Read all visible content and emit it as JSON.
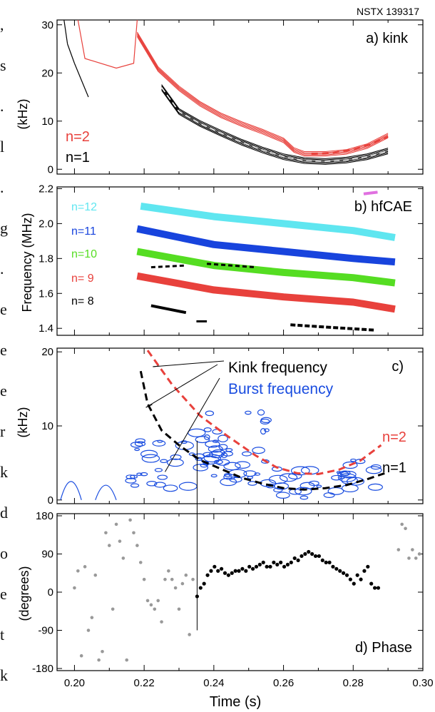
{
  "header": {
    "shot": "NSTX 139317"
  },
  "x_axis": {
    "label": "Time (s)",
    "ticks": [
      "0.20",
      "0.22",
      "0.24",
      "0.26",
      "0.28",
      "0.30"
    ],
    "range": [
      0.195,
      0.3
    ]
  },
  "margin_letters": [
    ",",
    "s",
    ".",
    "l",
    ".",
    "g",
    ".",
    "e",
    "e",
    "e",
    "r",
    "k",
    "d",
    "o",
    "e",
    "t",
    "k"
  ],
  "chart_data": [
    {
      "panel": "a",
      "type": "line",
      "title": "a) kink",
      "ylabel": "(kHz)",
      "ylim": [
        -1,
        31
      ],
      "yticks": [
        "0",
        "10",
        "20",
        "30"
      ],
      "legend": [
        {
          "label": "n=2",
          "color": "#e8413c"
        },
        {
          "label": "n=1",
          "color": "#000000"
        }
      ],
      "series": [
        {
          "name": "n=2",
          "color": "#e8413c",
          "x": [
            0.218,
            0.224,
            0.23,
            0.236,
            0.242,
            0.248,
            0.254,
            0.26,
            0.263,
            0.266,
            0.272,
            0.278,
            0.284,
            0.29
          ],
          "y": [
            28.0,
            20.8,
            16.8,
            13.6,
            11.2,
            9.4,
            7.8,
            6.0,
            4.0,
            3.2,
            3.2,
            3.6,
            4.8,
            7.0
          ]
        },
        {
          "name": "n=1",
          "color": "#000000",
          "x": [
            0.225,
            0.23,
            0.236,
            0.242,
            0.248,
            0.254,
            0.26,
            0.266,
            0.272,
            0.278,
            0.284,
            0.29
          ],
          "y": [
            17.0,
            12.0,
            9.5,
            7.5,
            5.6,
            4.0,
            2.6,
            1.8,
            1.6,
            1.9,
            2.6,
            3.8
          ]
        }
      ]
    },
    {
      "panel": "b",
      "type": "line",
      "title": "b) hfCAE",
      "ylabel": "Frequency (MHz)",
      "ylim": [
        1.36,
        2.21
      ],
      "yticks": [
        "1.4",
        "1.6",
        "1.8",
        "2.0",
        "2.2"
      ],
      "series": [
        {
          "name": "n=12",
          "color": "#5fe6f0",
          "x": [
            0.219,
            0.24,
            0.26,
            0.28,
            0.292
          ],
          "y": [
            2.1,
            2.04,
            2.0,
            1.96,
            1.92
          ]
        },
        {
          "name": "n=11",
          "color": "#1844dd",
          "x": [
            0.218,
            0.24,
            0.26,
            0.28,
            0.292
          ],
          "y": [
            1.97,
            1.88,
            1.84,
            1.8,
            1.78
          ]
        },
        {
          "name": "n=10",
          "color": "#55dd22",
          "x": [
            0.218,
            0.24,
            0.26,
            0.28,
            0.292
          ],
          "y": [
            1.84,
            1.76,
            1.72,
            1.69,
            1.66
          ]
        },
        {
          "name": "n= 9",
          "color": "#e8413c",
          "x": [
            0.218,
            0.24,
            0.26,
            0.28,
            0.292
          ],
          "y": [
            1.7,
            1.62,
            1.58,
            1.55,
            1.51
          ]
        },
        {
          "name": "n= 8",
          "color": "#000000",
          "x": [
            0.222,
            0.227,
            0.232
          ],
          "y": [
            1.53,
            1.51,
            1.49
          ]
        }
      ]
    },
    {
      "panel": "c",
      "type": "line",
      "title": "c)",
      "ylabel": "(kHz)",
      "ylim": [
        -0.5,
        20.5
      ],
      "yticks": [
        "0",
        "10",
        "20"
      ],
      "annotations": [
        "Kink frequency",
        "Burst frequency"
      ],
      "series_labels": [
        {
          "label": "n=2",
          "color": "#e8413c"
        },
        {
          "label": "n=1",
          "color": "#000000"
        }
      ],
      "series": [
        {
          "name": "n=2",
          "color": "#e8413c",
          "x": [
            0.221,
            0.228,
            0.236,
            0.244,
            0.252,
            0.258,
            0.264,
            0.27,
            0.276,
            0.282,
            0.288
          ],
          "y": [
            20.2,
            15.6,
            11.4,
            8.6,
            6.0,
            4.4,
            3.6,
            3.5,
            4.1,
            5.3,
            7.4
          ]
        },
        {
          "name": "n=1",
          "color": "#000000",
          "x": [
            0.219,
            0.221,
            0.225,
            0.23,
            0.236,
            0.242,
            0.248,
            0.254,
            0.26,
            0.266,
            0.272,
            0.278,
            0.284,
            0.289
          ],
          "y": [
            17.4,
            13.0,
            9.4,
            7.4,
            5.4,
            4.2,
            3.0,
            2.2,
            1.6,
            1.4,
            1.6,
            2.0,
            2.8,
            3.6
          ]
        }
      ]
    },
    {
      "panel": "d",
      "type": "scatter",
      "title": "d) Phase",
      "ylabel": "(degrees)",
      "ylim": [
        -185,
        185
      ],
      "yticks": [
        "180",
        "90",
        "0",
        "-90",
        "-180"
      ],
      "series": [
        {
          "name": "gray",
          "color": "#999999",
          "x": [
            0.2,
            0.201,
            0.202,
            0.203,
            0.204,
            0.205,
            0.206,
            0.207,
            0.208,
            0.209,
            0.21,
            0.211,
            0.212,
            0.213,
            0.214,
            0.215,
            0.216,
            0.217,
            0.218,
            0.219,
            0.22,
            0.221,
            0.222,
            0.223,
            0.224,
            0.225,
            0.226,
            0.227,
            0.228,
            0.229,
            0.23,
            0.231,
            0.232,
            0.233,
            0.234,
            0.293,
            0.294,
            0.295,
            0.296,
            0.297,
            0.298,
            0.299
          ],
          "y": [
            10,
            50,
            -150,
            60,
            -90,
            -60,
            40,
            -160,
            -140,
            140,
            110,
            -40,
            160,
            120,
            80,
            -160,
            170,
            140,
            110,
            70,
            30,
            -20,
            -30,
            -40,
            -20,
            -70,
            30,
            50,
            30,
            10,
            -40,
            20,
            40,
            -100,
            30,
            100,
            160,
            150,
            80,
            100,
            80,
            90
          ]
        },
        {
          "name": "black",
          "color": "#000000",
          "x": [
            0.2352,
            0.2362,
            0.2372,
            0.2382,
            0.2392,
            0.2402,
            0.2412,
            0.2422,
            0.2432,
            0.2442,
            0.2452,
            0.2462,
            0.2472,
            0.2482,
            0.2492,
            0.2502,
            0.2512,
            0.2522,
            0.2532,
            0.2542,
            0.2552,
            0.2562,
            0.2572,
            0.2582,
            0.2592,
            0.2602,
            0.2612,
            0.2622,
            0.2632,
            0.2642,
            0.2652,
            0.2662,
            0.2672,
            0.2682,
            0.2692,
            0.2702,
            0.2712,
            0.2722,
            0.2732,
            0.2742,
            0.2752,
            0.2762,
            0.2772,
            0.2782,
            0.2792,
            0.2802,
            0.2812,
            0.2822,
            0.2832,
            0.2842,
            0.2852,
            0.2862,
            0.2872
          ],
          "y": [
            -10,
            10,
            20,
            40,
            50,
            60,
            50,
            55,
            45,
            40,
            45,
            50,
            50,
            55,
            50,
            60,
            55,
            60,
            65,
            70,
            60,
            60,
            70,
            65,
            70,
            60,
            65,
            70,
            80,
            75,
            85,
            90,
            95,
            90,
            85,
            85,
            75,
            70,
            70,
            60,
            55,
            50,
            45,
            40,
            30,
            20,
            40,
            30,
            50,
            60,
            20,
            10,
            10
          ]
        }
      ]
    }
  ]
}
